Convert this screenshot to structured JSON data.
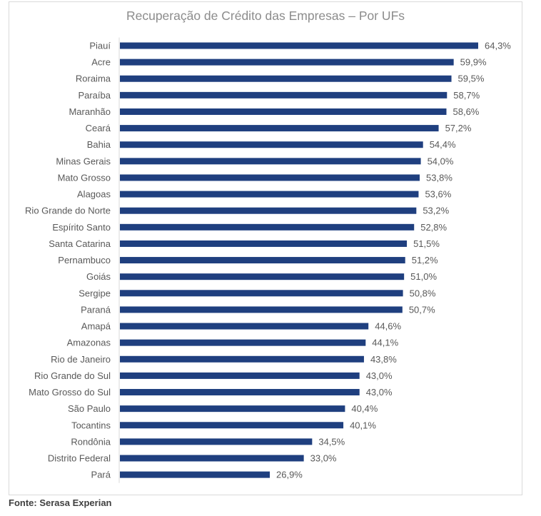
{
  "source_note": "Fonte: Serasa Experian",
  "chart_data": {
    "type": "bar",
    "orientation": "horizontal",
    "title": "Recuperação de Crédito das Empresas – Por UFs",
    "bar_color": "#1f3f7f",
    "value_suffix": "%",
    "xlim": [
      0,
      70
    ],
    "grid": false,
    "legend": false,
    "categories": [
      "Piauí",
      "Acre",
      "Roraima",
      "Paraíba",
      "Maranhão",
      "Ceará",
      "Bahia",
      "Minas Gerais",
      "Mato Grosso",
      "Alagoas",
      "Rio Grande do Norte",
      "Espírito Santo",
      "Santa Catarina",
      "Pernambuco",
      "Goiás",
      "Sergipe",
      "Paraná",
      "Amapá",
      "Amazonas",
      "Rio de Janeiro",
      "Rio Grande do Sul",
      "Mato Grosso do Sul",
      "São Paulo",
      "Tocantins",
      "Rondônia",
      "Distrito Federal",
      "Pará"
    ],
    "values": [
      64.3,
      59.9,
      59.5,
      58.7,
      58.6,
      57.2,
      54.4,
      54.0,
      53.8,
      53.6,
      53.2,
      52.8,
      51.5,
      51.2,
      51.0,
      50.8,
      50.7,
      44.6,
      44.1,
      43.8,
      43.0,
      43.0,
      40.4,
      40.1,
      34.5,
      33.0,
      26.9
    ],
    "value_labels": [
      "64,3%",
      "59,9%",
      "59,5%",
      "58,7%",
      "58,6%",
      "57,2%",
      "54,4%",
      "54,0%",
      "53,8%",
      "53,6%",
      "53,2%",
      "52,8%",
      "51,5%",
      "51,2%",
      "51,0%",
      "50,8%",
      "50,7%",
      "44,6%",
      "44,1%",
      "43,8%",
      "43,0%",
      "43,0%",
      "40,4%",
      "40,1%",
      "34,5%",
      "33,0%",
      "26,9%"
    ]
  }
}
